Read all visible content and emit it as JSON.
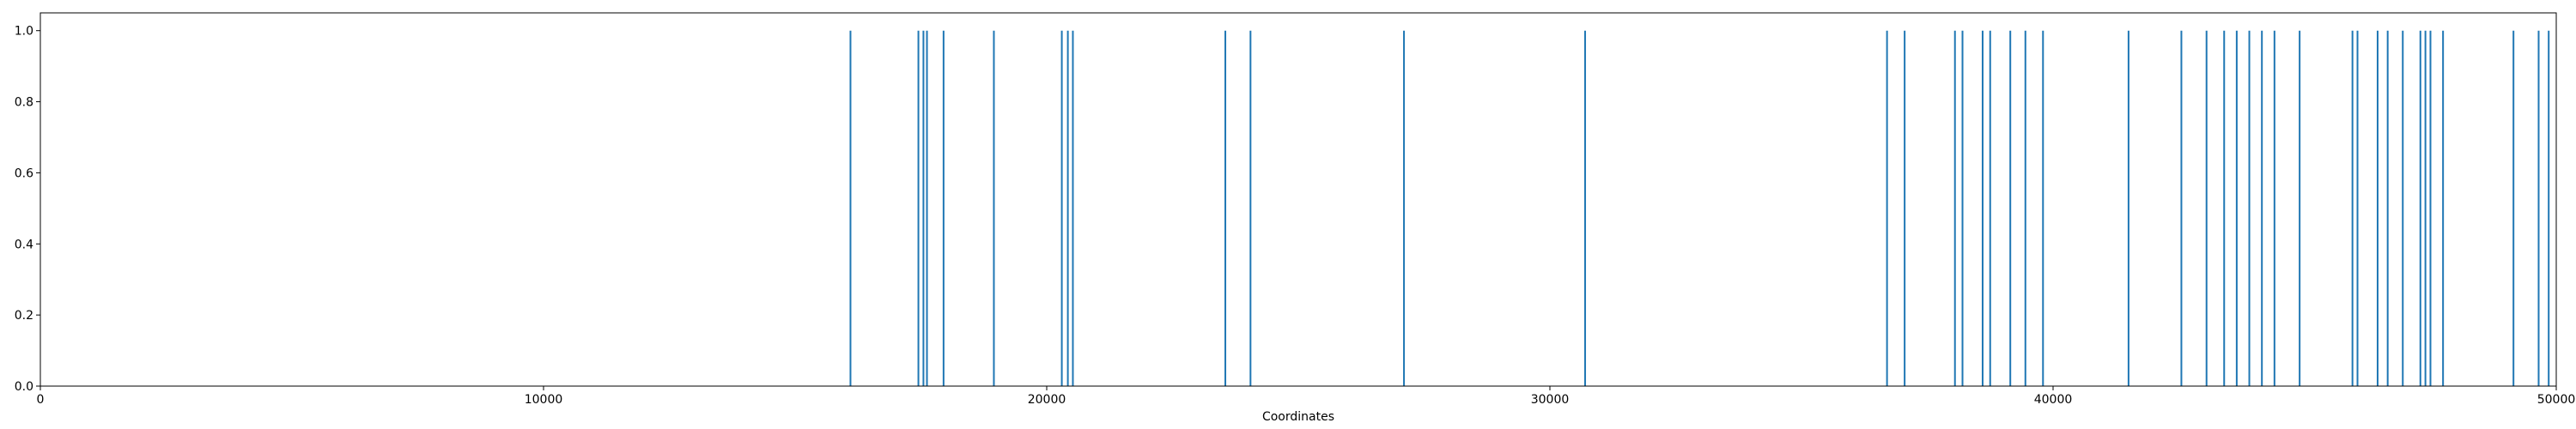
{
  "chart_data": {
    "type": "bar",
    "title": "",
    "xlabel": "Coordinates",
    "ylabel": "",
    "xlim": [
      0,
      50000
    ],
    "ylim": [
      0,
      1.05
    ],
    "grid": false,
    "series_color": "#1f77b4",
    "x_ticks": [
      0,
      10000,
      20000,
      30000,
      40000,
      50000
    ],
    "y_ticks": [
      0.0,
      0.2,
      0.4,
      0.6,
      0.8,
      1.0
    ],
    "x_tick_labels": [
      "0",
      "10000",
      "20000",
      "30000",
      "40000",
      "50000"
    ],
    "y_tick_labels": [
      "0.0",
      "0.2",
      "0.4",
      "0.6",
      "0.8",
      "1.0"
    ],
    "x": [
      16100,
      17450,
      17550,
      17620,
      17950,
      18950,
      20300,
      20420,
      20520,
      23550,
      24050,
      27100,
      30700,
      36700,
      37050,
      38050,
      38200,
      38600,
      38750,
      39150,
      39450,
      39800,
      41500,
      42550,
      43050,
      43400,
      43650,
      43900,
      44150,
      44400,
      44900,
      45950,
      46050,
      46450,
      46650,
      46950,
      47300,
      47400,
      47500,
      47750,
      49150,
      49650,
      49850
    ],
    "values": [
      1,
      1,
      1,
      1,
      1,
      1,
      1,
      1,
      1,
      1,
      1,
      1,
      1,
      1,
      1,
      1,
      1,
      1,
      1,
      1,
      1,
      1,
      1,
      1,
      1,
      1,
      1,
      1,
      1,
      1,
      1,
      1,
      1,
      1,
      1,
      1,
      1,
      1,
      1,
      1,
      1,
      1,
      1
    ]
  }
}
